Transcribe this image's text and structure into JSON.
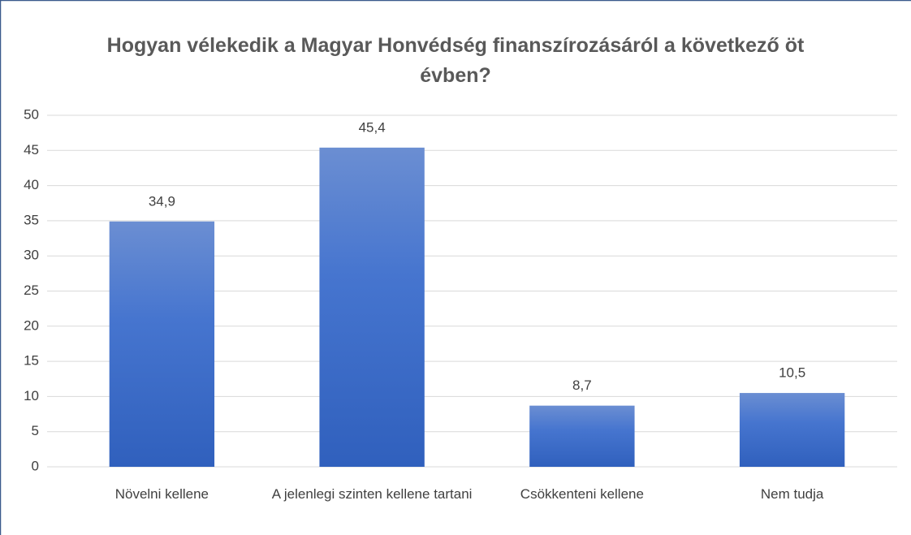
{
  "chart_data": {
    "type": "bar",
    "title": "Hogyan vélekedik a Magyar Honvédség finanszírozásáról a következő öt évben?",
    "categories": [
      "Növelni kellene",
      "A jelenlegi szinten kellene tartani",
      "Csökkenteni kellene",
      "Nem tudja"
    ],
    "values": [
      34.9,
      45.4,
      8.7,
      10.5
    ],
    "value_labels": [
      "34,9",
      "45,4",
      "8,7",
      "10,5"
    ],
    "color": "#4472c4",
    "ylim": [
      0,
      50
    ],
    "yticks": [
      0,
      5,
      10,
      15,
      20,
      25,
      30,
      35,
      40,
      45,
      50
    ],
    "grid": true
  }
}
